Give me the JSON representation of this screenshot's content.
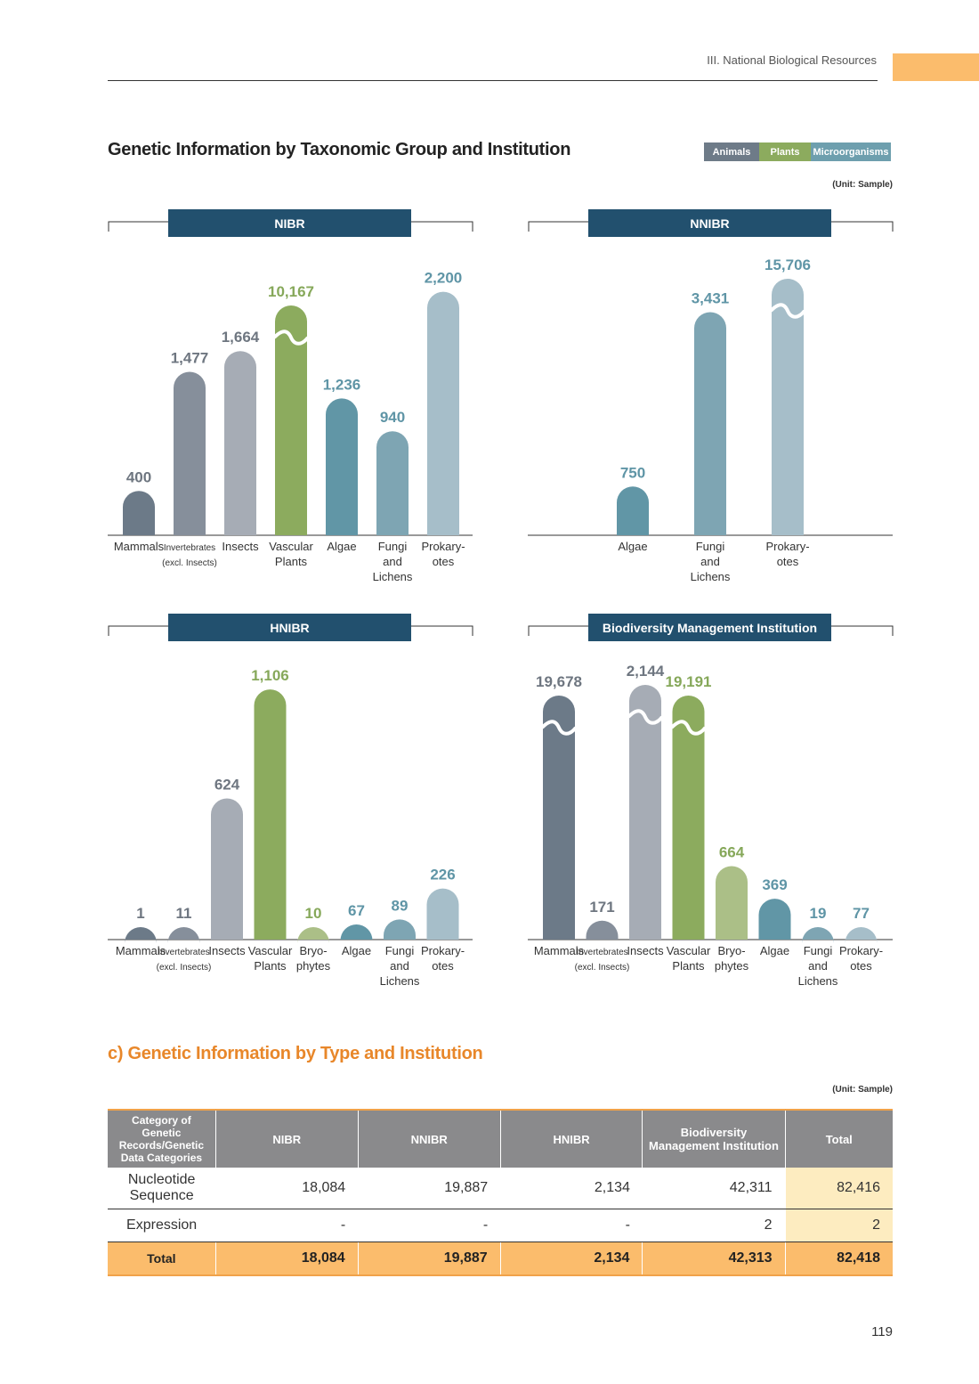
{
  "header": {
    "section": "III. National Biological Resources"
  },
  "title": "Genetic Information by Taxonomic Group and Institution",
  "legend": [
    {
      "label": "Animals",
      "color": "#6e7b88"
    },
    {
      "label": "Plants",
      "color": "#8cab5e"
    },
    {
      "label": "Microorganisms",
      "color": "#6e9fae"
    }
  ],
  "unit": "(Unit: Sample)",
  "chart_data": [
    {
      "type": "bar",
      "title": "NIBR",
      "categories": [
        "Mammals",
        "Invertebrates (excl. Insects)",
        "Insects",
        "Vascular Plants",
        "Algae",
        "Fungi and Lichens",
        "Prokaryotes"
      ],
      "category_lines": [
        [
          "Mammals"
        ],
        [
          "Invertebrates",
          "(excl. Insects)"
        ],
        [
          "Insects"
        ],
        [
          "Vascular",
          "Plants"
        ],
        [
          "Algae"
        ],
        [
          "Fungi",
          "and",
          "Lichens"
        ],
        [
          "Prokary-",
          "otes"
        ]
      ],
      "values": [
        400,
        1477,
        1664,
        10167,
        1236,
        940,
        2200
      ],
      "labels": [
        "400",
        "1,477",
        "1,664",
        "10,167",
        "1,236",
        "940",
        "2,200"
      ],
      "colors": [
        "#6c7a88",
        "#868f9b",
        "#a6acb5",
        "#8cab5e",
        "#6196a6",
        "#7ea5b3",
        "#a6bec9"
      ],
      "label_colors": [
        "#6e7680",
        "#6e7680",
        "#6e7680",
        "#86a85a",
        "#5f95a6",
        "#5f95a6",
        "#5f95a6"
      ],
      "breaks": [
        false,
        false,
        false,
        true,
        false,
        false,
        false
      ]
    },
    {
      "type": "bar",
      "title": "NNIBR",
      "categories": [
        "Algae",
        "Fungi and Lichens",
        "Prokaryotes"
      ],
      "category_lines": [
        [
          "Algae"
        ],
        [
          "Fungi",
          "and",
          "Lichens"
        ],
        [
          "Prokary-",
          "otes"
        ]
      ],
      "values": [
        750,
        3431,
        15706
      ],
      "labels": [
        "750",
        "3,431",
        "15,706"
      ],
      "colors": [
        "#6196a6",
        "#7ea5b3",
        "#a6bec9"
      ],
      "label_colors": [
        "#5f95a6",
        "#5f95a6",
        "#5f95a6"
      ],
      "breaks": [
        false,
        false,
        true
      ]
    },
    {
      "type": "bar",
      "title": "HNIBR",
      "categories": [
        "Mammals",
        "Invertebrates (excl. Insects)",
        "Insects",
        "Vascular Plants",
        "Bryophytes",
        "Algae",
        "Fungi and Lichens",
        "Prokaryotes"
      ],
      "category_lines": [
        [
          "Mammals"
        ],
        [
          "Invertebrates",
          "(excl. Insects)"
        ],
        [
          "Insects"
        ],
        [
          "Vascular",
          "Plants"
        ],
        [
          "Bryo-",
          "phytes"
        ],
        [
          "Algae"
        ],
        [
          "Fungi",
          "and",
          "Lichens"
        ],
        [
          "Prokary-",
          "otes"
        ]
      ],
      "values": [
        1,
        11,
        624,
        1106,
        10,
        67,
        89,
        226
      ],
      "labels": [
        "1",
        "11",
        "624",
        "1,106",
        "10",
        "67",
        "89",
        "226"
      ],
      "colors": [
        "#6c7a88",
        "#868f9b",
        "#a6acb5",
        "#8cab5e",
        "#abbf87",
        "#6196a6",
        "#7ea5b3",
        "#a6bec9"
      ],
      "label_colors": [
        "#6e7680",
        "#6e7680",
        "#6e7680",
        "#86a85a",
        "#86a85a",
        "#5f95a6",
        "#5f95a6",
        "#5f95a6"
      ],
      "breaks": [
        false,
        false,
        false,
        false,
        false,
        false,
        false,
        false
      ]
    },
    {
      "type": "bar",
      "title": "Biodiversity Management Institution",
      "categories": [
        "Mammals",
        "Invertebrates (excl. Insects)",
        "Insects",
        "Vascular Plants",
        "Bryophytes",
        "Algae",
        "Fungi and Lichens",
        "Prokaryotes"
      ],
      "category_lines": [
        [
          "Mammals"
        ],
        [
          "Invertebrates",
          "(excl. Insects)"
        ],
        [
          "Insects"
        ],
        [
          "Vascular",
          "Plants"
        ],
        [
          "Bryo-",
          "phytes"
        ],
        [
          "Algae"
        ],
        [
          "Fungi",
          "and",
          "Lichens"
        ],
        [
          "Prokary-",
          "otes"
        ]
      ],
      "values": [
        19678,
        171,
        2144,
        19191,
        664,
        369,
        19,
        77
      ],
      "labels": [
        "19,678",
        "171",
        "2,144",
        "19,191",
        "664",
        "369",
        "19",
        "77"
      ],
      "colors": [
        "#6c7a88",
        "#868f9b",
        "#a6acb5",
        "#8cab5e",
        "#abbf87",
        "#6196a6",
        "#7ea5b3",
        "#a6bec9"
      ],
      "label_colors": [
        "#6e7680",
        "#6e7680",
        "#6e7680",
        "#86a85a",
        "#86a85a",
        "#5f95a6",
        "#5f95a6",
        "#5f95a6"
      ],
      "breaks": [
        true,
        false,
        true,
        true,
        false,
        false,
        false,
        false
      ]
    }
  ],
  "section2": {
    "title": "c) Genetic Information by Type and Institution",
    "unit": "(Unit: Sample)",
    "headers": [
      "Category of Genetic Records/Genetic Data Categories",
      "NIBR",
      "NNIBR",
      "HNIBR",
      "Biodiversity Management Institution",
      "Total"
    ],
    "rows": [
      {
        "label": "Nucleotide Sequence",
        "values": [
          "18,084",
          "19,887",
          "2,134",
          "42,311",
          "82,416"
        ]
      },
      {
        "label": "Expression",
        "values": [
          "-",
          "-",
          "-",
          "2",
          "2"
        ]
      }
    ],
    "total": {
      "label": "Total",
      "values": [
        "18,084",
        "19,887",
        "2,134",
        "42,313",
        "82,418"
      ]
    }
  },
  "page_number": "119"
}
